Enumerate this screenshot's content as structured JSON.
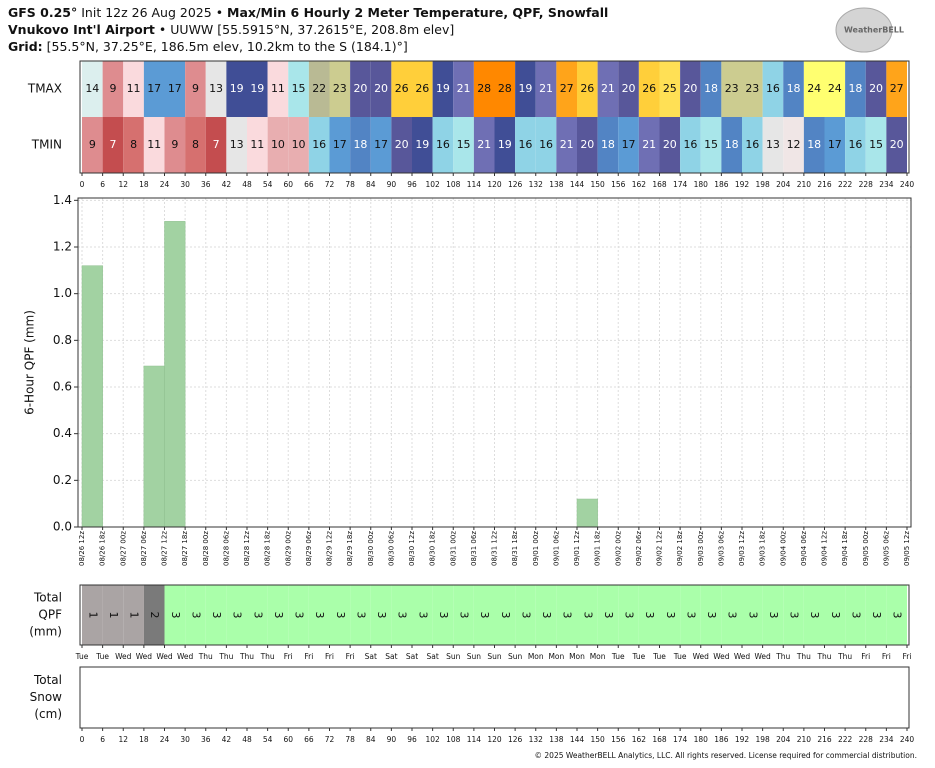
{
  "header": {
    "model": "GFS 0.25°",
    "init": "Init 12z 26 Aug 2025",
    "separator": "•",
    "title": "Max/Min 6 Hourly 2 Meter Temperature, QPF, Snowfall",
    "station": "Vnukovo Int'l Airport",
    "station_info": "UUWW [55.5915°N, 37.2615°E, 208.8m elev]",
    "grid_label": "Grid:",
    "grid_info": "[55.5°N, 37.25°E, 186.5m elev, 10.2km to the S (184.1)°]",
    "logo": "WeatherBELL"
  },
  "chart_data": [
    {
      "type": "heatmap",
      "x": [
        0,
        6,
        12,
        18,
        24,
        30,
        36,
        42,
        48,
        54,
        60,
        66,
        72,
        78,
        84,
        90,
        96,
        102,
        108,
        114,
        120,
        126,
        132,
        138,
        144,
        150,
        156,
        162,
        168,
        174,
        180,
        186,
        192,
        198,
        204,
        210,
        216,
        222,
        228,
        234
      ],
      "rows": [
        {
          "name": "TMAX",
          "values": [
            14,
            9,
            11,
            17,
            17,
            9,
            13,
            19,
            19,
            11,
            15,
            22,
            23,
            20,
            20,
            26,
            26,
            19,
            21,
            28,
            28,
            19,
            21,
            27,
            26,
            21,
            20,
            26,
            25,
            20,
            18,
            23,
            23,
            16,
            18,
            24,
            24,
            18,
            20,
            27
          ],
          "colors": [
            "#dcefee",
            "#de8c8f",
            "#fadadd",
            "#5b9bd5",
            "#5b9bd5",
            "#de8c8f",
            "#e6e6e6",
            "#404e96",
            "#404e96",
            "#fadadd",
            "#a9e6ea",
            "#b9ba94",
            "#cccc90",
            "#58579a",
            "#58579a",
            "#ffcf3a",
            "#ffcf3a",
            "#404e96",
            "#6f6fb4",
            "#ff8800",
            "#ff8800",
            "#404e96",
            "#6f6fb4",
            "#ffa41a",
            "#ffcf3a",
            "#6f6fb4",
            "#58579a",
            "#ffcf3a",
            "#ffe055",
            "#58579a",
            "#5284c4",
            "#cccc90",
            "#cccc90",
            "#8fd3e6",
            "#5284c4",
            "#ffff70",
            "#ffff70",
            "#5284c4",
            "#58579a",
            "#ffa41a"
          ]
        },
        {
          "name": "TMIN",
          "values": [
            9,
            7,
            8,
            11,
            9,
            8,
            7,
            13,
            11,
            10,
            10,
            16,
            17,
            18,
            17,
            20,
            19,
            16,
            15,
            21,
            19,
            16,
            16,
            21,
            20,
            18,
            17,
            21,
            20,
            16,
            15,
            18,
            16,
            13,
            12,
            18,
            17,
            16,
            15,
            20
          ],
          "colors": [
            "#de8c8f",
            "#c44d4f",
            "#d6706f",
            "#fadadd",
            "#de8c8f",
            "#d6706f",
            "#c44d4f",
            "#e6e6e6",
            "#fadadd",
            "#e8aeb0",
            "#e8aeb0",
            "#8fd3e6",
            "#5b9bd5",
            "#5284c4",
            "#5b9bd5",
            "#58579a",
            "#404e96",
            "#8fd3e6",
            "#a9e6ea",
            "#6f6fb4",
            "#404e96",
            "#8fd3e6",
            "#8fd3e6",
            "#6f6fb4",
            "#58579a",
            "#5284c4",
            "#5b9bd5",
            "#6f6fb4",
            "#58579a",
            "#8fd3e6",
            "#a9e6ea",
            "#5284c4",
            "#8fd3e6",
            "#e6e6e6",
            "#f0e6e6",
            "#5284c4",
            "#5b9bd5",
            "#8fd3e6",
            "#a9e6ea",
            "#58579a"
          ]
        }
      ],
      "xlim": [
        0,
        240
      ],
      "xticks": [
        0,
        6,
        12,
        18,
        24,
        30,
        36,
        42,
        48,
        54,
        60,
        66,
        72,
        78,
        84,
        90,
        96,
        102,
        108,
        114,
        120,
        126,
        132,
        138,
        144,
        150,
        156,
        162,
        168,
        174,
        180,
        186,
        192,
        198,
        204,
        210,
        216,
        222,
        228,
        234,
        240
      ]
    },
    {
      "type": "bar",
      "ylabel": "6-Hour QPF (mm)",
      "x": [
        0,
        6,
        12,
        18,
        24,
        30,
        36,
        42,
        48,
        54,
        60,
        66,
        72,
        78,
        84,
        90,
        96,
        102,
        108,
        114,
        120,
        126,
        132,
        138,
        144,
        150,
        156,
        162,
        168,
        174,
        180,
        186,
        192,
        198,
        204,
        210,
        216,
        222,
        228,
        234
      ],
      "values": [
        1.12,
        0,
        0,
        0.69,
        1.31,
        0,
        0,
        0,
        0,
        0,
        0,
        0,
        0,
        0,
        0,
        0,
        0,
        0,
        0,
        0,
        0,
        0,
        0,
        0,
        0.12,
        0,
        0,
        0,
        0,
        0,
        0,
        0,
        0,
        0,
        0,
        0,
        0,
        0,
        0,
        0
      ],
      "color": "#a2d2a2",
      "ylim": [
        0,
        1.41
      ],
      "yticks": [
        {
          "value": 0,
          "label": "0.0"
        },
        0.2,
        0.4,
        0.6,
        0.8,
        {
          "value": 1,
          "label": "1.0"
        },
        1.2,
        1.4
      ],
      "xlim": [
        0,
        240
      ],
      "xticks": [
        {
          "value": 0,
          "label": "08/26 12z"
        },
        {
          "value": 6,
          "label": "08/26 18z"
        },
        {
          "value": 12,
          "label": "08/27 00z"
        },
        {
          "value": 18,
          "label": "08/27 06z"
        },
        {
          "value": 24,
          "label": "08/27 12z"
        },
        {
          "value": 30,
          "label": "08/27 18z"
        },
        {
          "value": 36,
          "label": "08/28 00z"
        },
        {
          "value": 42,
          "label": "08/28 06z"
        },
        {
          "value": 48,
          "label": "08/28 12z"
        },
        {
          "value": 54,
          "label": "08/28 18z"
        },
        {
          "value": 60,
          "label": "08/29 00z"
        },
        {
          "value": 66,
          "label": "08/29 06z"
        },
        {
          "value": 72,
          "label": "08/29 12z"
        },
        {
          "value": 78,
          "label": "08/29 18z"
        },
        {
          "value": 84,
          "label": "08/30 00z"
        },
        {
          "value": 90,
          "label": "08/30 06z"
        },
        {
          "value": 96,
          "label": "08/30 12z"
        },
        {
          "value": 102,
          "label": "08/30 18z"
        },
        {
          "value": 108,
          "label": "08/31 00z"
        },
        {
          "value": 114,
          "label": "08/31 06z"
        },
        {
          "value": 120,
          "label": "08/31 12z"
        },
        {
          "value": 126,
          "label": "08/31 18z"
        },
        {
          "value": 132,
          "label": "09/01 00z"
        },
        {
          "value": 138,
          "label": "09/01 06z"
        },
        {
          "value": 144,
          "label": "09/01 12z"
        },
        {
          "value": 150,
          "label": "09/01 18z"
        },
        {
          "value": 156,
          "label": "09/02 00z"
        },
        {
          "value": 162,
          "label": "09/02 06z"
        },
        {
          "value": 168,
          "label": "09/02 12z"
        },
        {
          "value": 174,
          "label": "09/02 18z"
        },
        {
          "value": 180,
          "label": "09/03 00z"
        },
        {
          "value": 186,
          "label": "09/03 06z"
        },
        {
          "value": 192,
          "label": "09/03 12z"
        },
        {
          "value": 198,
          "label": "09/03 18z"
        },
        {
          "value": 204,
          "label": "09/04 00z"
        },
        {
          "value": 210,
          "label": "09/04 06z"
        },
        {
          "value": 216,
          "label": "09/04 12z"
        },
        {
          "value": 222,
          "label": "09/04 18z"
        },
        {
          "value": 228,
          "label": "09/05 00z"
        },
        {
          "value": 234,
          "label": "09/05 06z"
        },
        {
          "value": 240,
          "label": "09/05 12z"
        }
      ],
      "grid": true
    },
    {
      "type": "strip",
      "ylabel": [
        "Total",
        "QPF",
        "(mm)"
      ],
      "x": [
        0,
        6,
        12,
        18,
        24,
        30,
        36,
        42,
        48,
        54,
        60,
        66,
        72,
        78,
        84,
        90,
        96,
        102,
        108,
        114,
        120,
        126,
        132,
        138,
        144,
        150,
        156,
        162,
        168,
        174,
        180,
        186,
        192,
        198,
        204,
        210,
        216,
        222,
        228,
        234
      ],
      "values": [
        1,
        1,
        1,
        2,
        3,
        3,
        3,
        3,
        3,
        3,
        3,
        3,
        3,
        3,
        3,
        3,
        3,
        3,
        3,
        3,
        3,
        3,
        3,
        3,
        3,
        3,
        3,
        3,
        3,
        3,
        3,
        3,
        3,
        3,
        3,
        3,
        3,
        3,
        3,
        3
      ],
      "colors": [
        "#aaa4a4",
        "#aaa4a4",
        "#aaa4a4",
        "#7a7a7a",
        "#aaffaa",
        "#aaffaa",
        "#aaffaa",
        "#aaffaa",
        "#aaffaa",
        "#aaffaa",
        "#aaffaa",
        "#aaffaa",
        "#aaffaa",
        "#aaffaa",
        "#aaffaa",
        "#aaffaa",
        "#aaffaa",
        "#aaffaa",
        "#aaffaa",
        "#aaffaa",
        "#aaffaa",
        "#aaffaa",
        "#aaffaa",
        "#aaffaa",
        "#aaffaa",
        "#aaffaa",
        "#aaffaa",
        "#aaffaa",
        "#aaffaa",
        "#aaffaa",
        "#aaffaa",
        "#aaffaa",
        "#aaffaa",
        "#aaffaa",
        "#aaffaa",
        "#aaffaa",
        "#aaffaa",
        "#aaffaa",
        "#aaffaa",
        "#aaffaa"
      ],
      "xlim": [
        0,
        240
      ],
      "xticks": [
        {
          "value": 0,
          "label": "Tue"
        },
        {
          "value": 6,
          "label": "Tue"
        },
        {
          "value": 12,
          "label": "Wed"
        },
        {
          "value": 18,
          "label": "Wed"
        },
        {
          "value": 24,
          "label": "Wed"
        },
        {
          "value": 30,
          "label": "Wed"
        },
        {
          "value": 36,
          "label": "Thu"
        },
        {
          "value": 42,
          "label": "Thu"
        },
        {
          "value": 48,
          "label": "Thu"
        },
        {
          "value": 54,
          "label": "Thu"
        },
        {
          "value": 60,
          "label": "Fri"
        },
        {
          "value": 66,
          "label": "Fri"
        },
        {
          "value": 72,
          "label": "Fri"
        },
        {
          "value": 78,
          "label": "Fri"
        },
        {
          "value": 84,
          "label": "Sat"
        },
        {
          "value": 90,
          "label": "Sat"
        },
        {
          "value": 96,
          "label": "Sat"
        },
        {
          "value": 102,
          "label": "Sat"
        },
        {
          "value": 108,
          "label": "Sun"
        },
        {
          "value": 114,
          "label": "Sun"
        },
        {
          "value": 120,
          "label": "Sun"
        },
        {
          "value": 126,
          "label": "Sun"
        },
        {
          "value": 132,
          "label": "Mon"
        },
        {
          "value": 138,
          "label": "Mon"
        },
        {
          "value": 144,
          "label": "Mon"
        },
        {
          "value": 150,
          "label": "Mon"
        },
        {
          "value": 156,
          "label": "Tue"
        },
        {
          "value": 162,
          "label": "Tue"
        },
        {
          "value": 168,
          "label": "Tue"
        },
        {
          "value": 174,
          "label": "Tue"
        },
        {
          "value": 180,
          "label": "Wed"
        },
        {
          "value": 186,
          "label": "Wed"
        },
        {
          "value": 192,
          "label": "Wed"
        },
        {
          "value": 198,
          "label": "Wed"
        },
        {
          "value": 204,
          "label": "Thu"
        },
        {
          "value": 210,
          "label": "Thu"
        },
        {
          "value": 216,
          "label": "Thu"
        },
        {
          "value": 222,
          "label": "Thu"
        },
        {
          "value": 228,
          "label": "Fri"
        },
        {
          "value": 234,
          "label": "Fri"
        },
        {
          "value": 240,
          "label": "Fri"
        }
      ]
    },
    {
      "type": "strip",
      "ylabel": [
        "Total",
        "Snow",
        "(cm)"
      ],
      "x": [],
      "values": [],
      "colors": [],
      "xlim": [
        0,
        240
      ],
      "xticks": [
        0,
        6,
        12,
        18,
        24,
        30,
        36,
        42,
        48,
        54,
        60,
        66,
        72,
        78,
        84,
        90,
        96,
        102,
        108,
        114,
        120,
        126,
        132,
        138,
        144,
        150,
        156,
        162,
        168,
        174,
        180,
        186,
        192,
        198,
        204,
        210,
        216,
        222,
        228,
        234,
        240
      ]
    }
  ],
  "footer": "© 2025 WeatherBELL Analytics, LLC. All rights reserved. License required for commercial distribution."
}
